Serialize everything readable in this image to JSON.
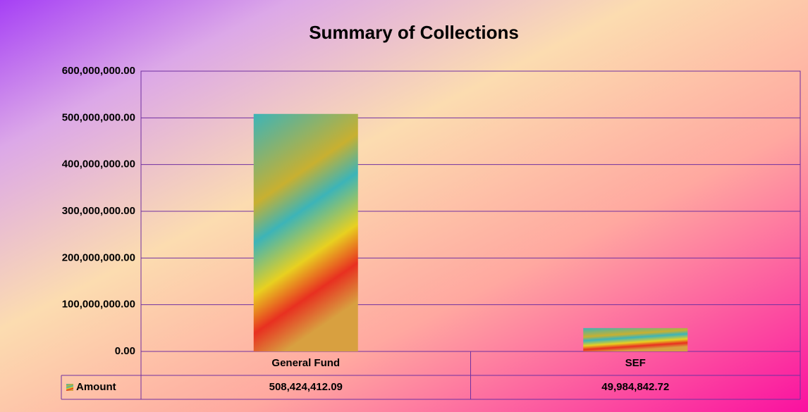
{
  "chart_data": {
    "type": "bar",
    "title": "Summary of Collections",
    "categories": [
      "General Fund",
      "SEF"
    ],
    "series": [
      {
        "name": "Amount",
        "color": "#3cb4b8",
        "values": [
          508424412.09,
          49984842.72
        ],
        "value_labels": [
          "508,424,412.09",
          "49,984,842.72"
        ]
      }
    ],
    "ylim": [
      0,
      600000000
    ],
    "yticks": [
      {
        "value": 0,
        "label": "0.00"
      },
      {
        "value": 100000000,
        "label": "100,000,000.00"
      },
      {
        "value": 200000000,
        "label": "200,000,000.00"
      },
      {
        "value": 300000000,
        "label": "300,000,000.00"
      },
      {
        "value": 400000000,
        "label": "400,000,000.00"
      },
      {
        "value": 500000000,
        "label": "500,000,000.00"
      },
      {
        "value": 600000000,
        "label": "600,000,000.00"
      }
    ],
    "grid": true
  }
}
